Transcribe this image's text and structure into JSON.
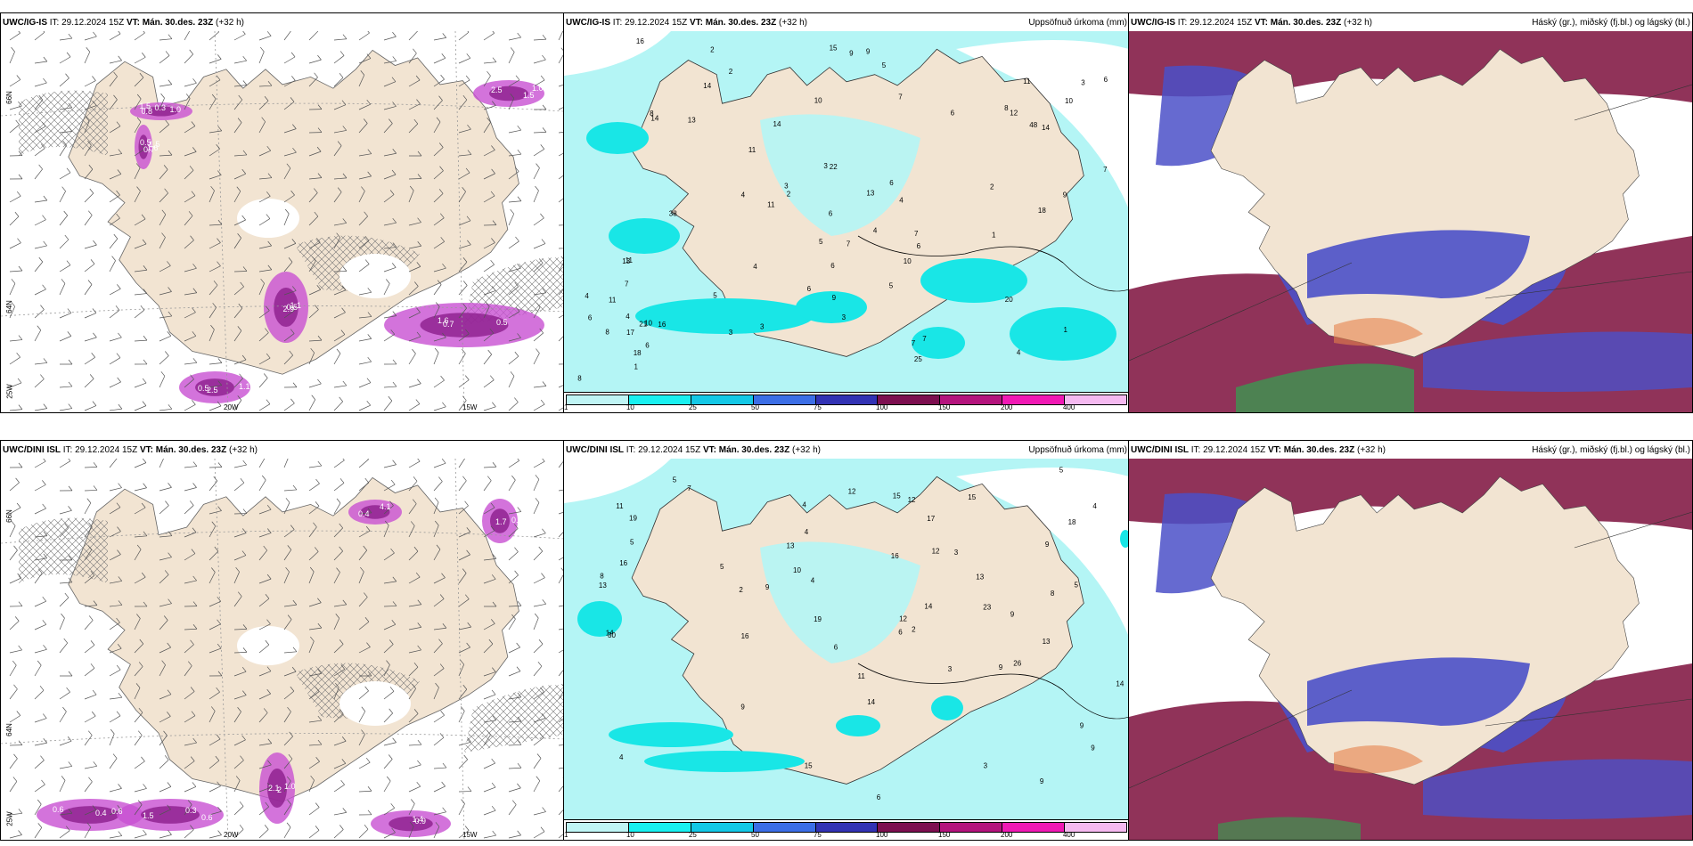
{
  "rows": [
    {
      "left": {
        "model": "UWC/IG-IS",
        "it": "IT: 29.12.2024 15Z",
        "vt": "VT: Mán. 30.des. 23Z",
        "lead": "(+32 h)"
      },
      "mid": {
        "model": "UWC/IG-IS",
        "it": "IT: 29.12.2024 15Z",
        "vt": "VT: Mán. 30.des. 23Z",
        "lead": "(+32 h)",
        "title": "Uppsöfnuð úrkoma (mm)"
      },
      "right": {
        "model": "UWC/IG-IS",
        "it": "IT: 29.12.2024 15Z",
        "vt": "VT: Mán. 30.des. 23Z",
        "lead": "(+32 h)",
        "title": "Háský (gr.), miðský (fj.bl.) og lágský (bl.)"
      },
      "left_lat_labels": [
        "66N",
        "64N",
        "25W"
      ],
      "left_lon_labels": [
        "20W",
        "15W"
      ],
      "left_values": [
        "1.5",
        "1.6",
        "1.1",
        "1.6",
        "1.5",
        "1.1",
        "0.3",
        "0.7",
        "0.5",
        "0.5",
        "1.0",
        "0.5",
        "1.0",
        "0.5",
        "2.9",
        "0.7",
        "2.5",
        "2.5",
        "0.8",
        "1.5"
      ],
      "mid_numbers": [
        "14",
        "9",
        "2",
        "4",
        "7",
        "14",
        "4",
        "3",
        "4",
        "3",
        "12",
        "2",
        "8",
        "6",
        "3",
        "5",
        "6",
        "48",
        "9",
        "7",
        "11",
        "3",
        "2",
        "3",
        "5",
        "1",
        "5",
        "8",
        "11",
        "11",
        "4",
        "6",
        "3",
        "2",
        "5",
        "7",
        "7",
        "8",
        "6",
        "6",
        "4",
        "10",
        "7",
        "38",
        "18",
        "14",
        "6",
        "6",
        "7",
        "7",
        "4",
        "10",
        "6",
        "4",
        "10",
        "11",
        "9",
        "13",
        "17",
        "13",
        "16",
        "21",
        "18",
        "11",
        "15",
        "10",
        "14",
        "9",
        "20",
        "25",
        "22",
        "16",
        "6",
        "8",
        "13",
        "1",
        "1"
      ]
    },
    {
      "left": {
        "model": "UWC/DINI ISL",
        "it": "IT: 29.12.2024 15Z",
        "vt": "VT: Mán. 30.des. 23Z",
        "lead": "(+32 h)"
      },
      "mid": {
        "model": "UWC/DINI ISL",
        "it": "IT: 29.12.2024 15Z",
        "vt": "VT: Mán. 30.des. 23Z",
        "lead": "(+32 h)",
        "title": "Uppsöfnuð úrkoma (mm)"
      },
      "right": {
        "model": "UWC/DINI ISL",
        "it": "IT: 29.12.2024 15Z",
        "vt": "VT: Mán. 30.des. 23Z",
        "lead": "(+32 h)",
        "title": "Háský (gr.), miðský (fj.bl.) og lágský (bl.)"
      },
      "left_lat_labels": [
        "66N",
        "64N",
        "25W"
      ],
      "left_lon_labels": [
        "20W",
        "15W"
      ],
      "left_values": [
        "0.6",
        "1.5",
        "1.0",
        "1.4",
        "0.4",
        "0.5",
        "0.6",
        "0.6",
        "2.1",
        "0.9",
        "4.1",
        "1.7",
        "0.4",
        "0.3",
        "2"
      ],
      "mid_numbers": [
        "5",
        "4",
        "6",
        "26",
        "23",
        "30",
        "9",
        "5",
        "9",
        "5",
        "8",
        "7",
        "3",
        "3",
        "4",
        "5",
        "4",
        "8",
        "9",
        "12",
        "13",
        "12",
        "14",
        "15",
        "19",
        "16",
        "9",
        "15",
        "14",
        "15",
        "13",
        "9",
        "9",
        "9",
        "12",
        "14",
        "16",
        "19",
        "18",
        "16",
        "14",
        "13",
        "11",
        "17",
        "10",
        "9",
        "13",
        "2",
        "3",
        "6",
        "4",
        "5",
        "6",
        "11",
        "12",
        "4",
        "2"
      ]
    }
  ],
  "legend": {
    "ticks": [
      "1",
      "10",
      "25",
      "50",
      "75",
      "100",
      "150",
      "200",
      "400"
    ],
    "colors": [
      "#bff5f5",
      "#19f0f0",
      "#14c8e6",
      "#3c6ee6",
      "#3232b4",
      "#7d0f50",
      "#b4147d",
      "#f019b4",
      "#f5b9f0"
    ]
  },
  "colors": {
    "land": "#f2e4d2",
    "sea_precip_light": "#b4f5f5",
    "precip_medium": "#19e6e6",
    "wind_barb": "#555555",
    "purple_precip": "#c850d2",
    "cloud_high": "#7d0f3c",
    "cloud_mid": "#4b50c8",
    "cloud_low": "#3c9650"
  }
}
